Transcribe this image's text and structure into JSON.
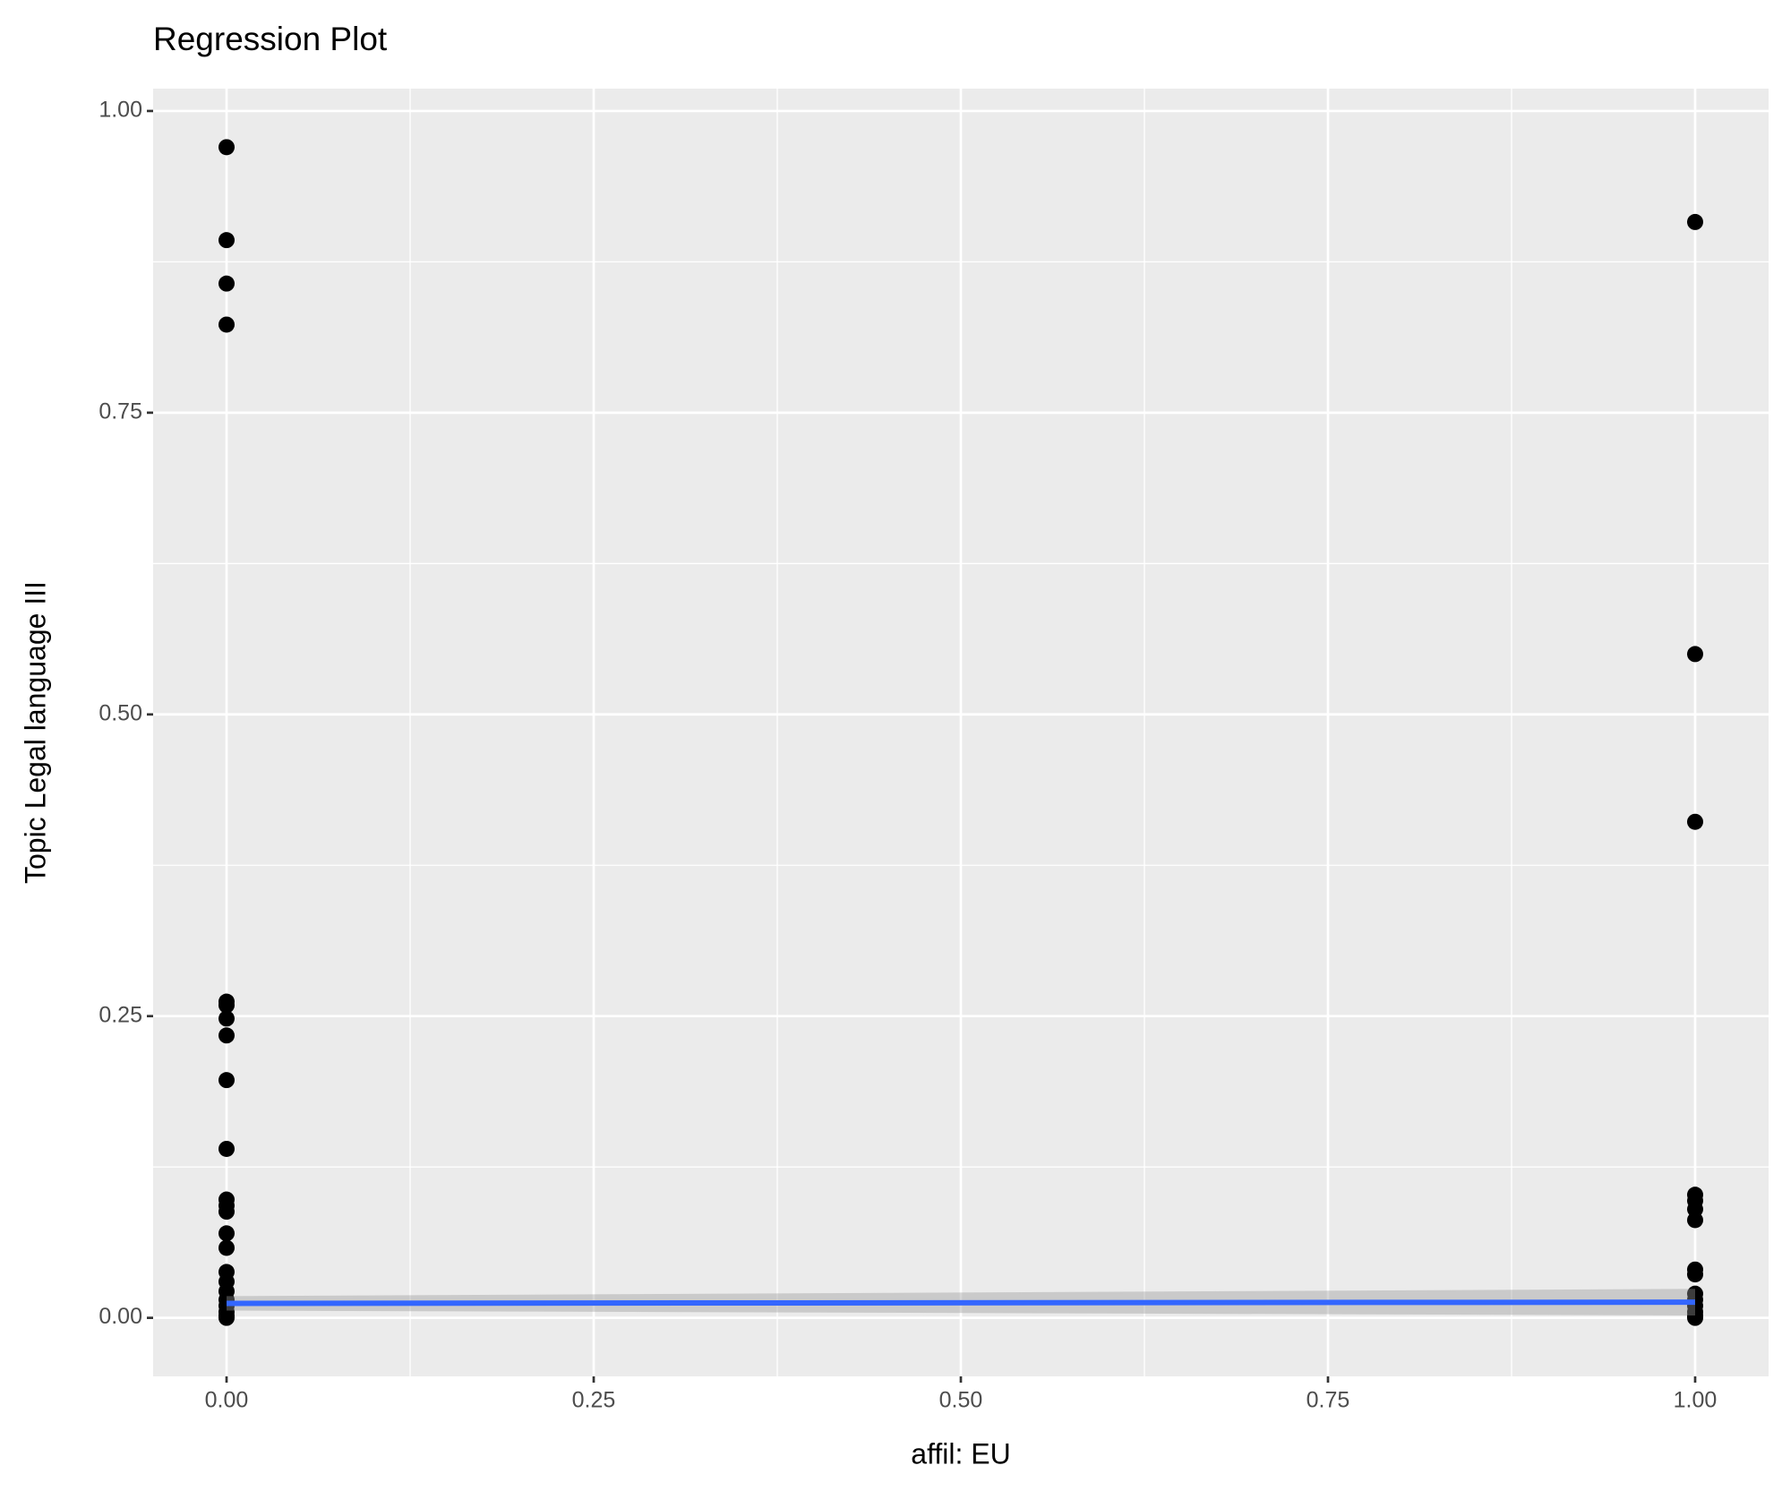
{
  "chart_data": {
    "type": "scatter",
    "title": "Regression Plot",
    "x_label": "affil: EU",
    "y_label": "Topic Legal language III",
    "xlim": [
      -0.05,
      1.05
    ],
    "ylim": [
      -0.0485,
      1.0185
    ],
    "xticks": [
      {
        "value": 0,
        "label": "0.00"
      },
      0.25,
      {
        "value": 0.5,
        "label": "0.50"
      },
      0.75,
      {
        "value": 1,
        "label": "1.00"
      }
    ],
    "yticks": [
      {
        "value": 0,
        "label": "0.00"
      },
      0.25,
      {
        "value": 0.5,
        "label": "0.50"
      },
      0.75,
      {
        "value": 1,
        "label": "1.00"
      }
    ],
    "grid": true,
    "series": [
      {
        "color": "#000000",
        "x": [
          0,
          0,
          0,
          0,
          0,
          0,
          0,
          0,
          0,
          0,
          0,
          0,
          0,
          0,
          0,
          0,
          0,
          0,
          0,
          0,
          0,
          0,
          0,
          1,
          1,
          1,
          1,
          1,
          1,
          1,
          1,
          1,
          1,
          1,
          1,
          1,
          1,
          1
        ],
        "y": [
          0.97,
          0.893,
          0.857,
          0.823,
          0.262,
          0.259,
          0.248,
          0.234,
          0.197,
          0.14,
          0.098,
          0.093,
          0.088,
          0.07,
          0.058,
          0.038,
          0.03,
          0.022,
          0.015,
          0.01,
          0.005,
          0.002,
          0,
          0.908,
          0.55,
          0.411,
          0.102,
          0.097,
          0.09,
          0.081,
          0.04,
          0.036,
          0.02,
          0.015,
          0.01,
          0.005,
          0.002,
          0
        ]
      }
    ],
    "fit": {
      "color": "#3366ff",
      "x": [
        0,
        1
      ],
      "y": [
        0.012,
        0.013
      ],
      "lower": [
        0.006,
        0.002
      ],
      "upper": [
        0.018,
        0.024
      ]
    }
  }
}
